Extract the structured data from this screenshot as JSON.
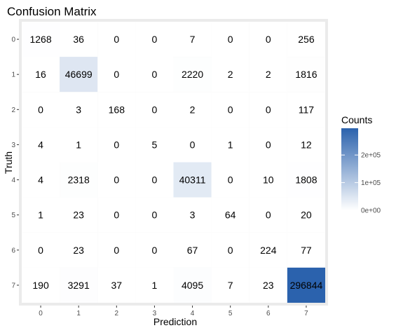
{
  "chart_data": {
    "type": "heatmap",
    "title": "Confusion Matrix",
    "xlabel": "Prediction",
    "ylabel": "Truth",
    "x_categories": [
      "0",
      "1",
      "2",
      "3",
      "4",
      "5",
      "6",
      "7"
    ],
    "y_categories": [
      "0",
      "1",
      "2",
      "3",
      "4",
      "5",
      "6",
      "7"
    ],
    "values": [
      [
        1268,
        36,
        0,
        0,
        7,
        0,
        0,
        256
      ],
      [
        16,
        46699,
        0,
        0,
        2220,
        2,
        2,
        1816
      ],
      [
        0,
        3,
        168,
        0,
        2,
        0,
        0,
        117
      ],
      [
        4,
        1,
        0,
        5,
        0,
        1,
        0,
        12
      ],
      [
        4,
        2318,
        0,
        0,
        40311,
        0,
        10,
        1808
      ],
      [
        1,
        23,
        0,
        0,
        3,
        64,
        0,
        20
      ],
      [
        0,
        23,
        0,
        0,
        67,
        0,
        224,
        77
      ],
      [
        190,
        3291,
        37,
        1,
        4095,
        7,
        23,
        296844
      ]
    ],
    "legend": {
      "title": "Counts",
      "position": "right",
      "ticks": [
        {
          "value": 0,
          "label": "0e+00"
        },
        {
          "value": 100000,
          "label": "1e+05"
        },
        {
          "value": 200000,
          "label": "2e+05"
        }
      ],
      "range": [
        0,
        296844
      ]
    },
    "color_low": "#ffffff",
    "color_high": "#2b62ad",
    "panel_background": "#ebebeb",
    "grid": true
  }
}
